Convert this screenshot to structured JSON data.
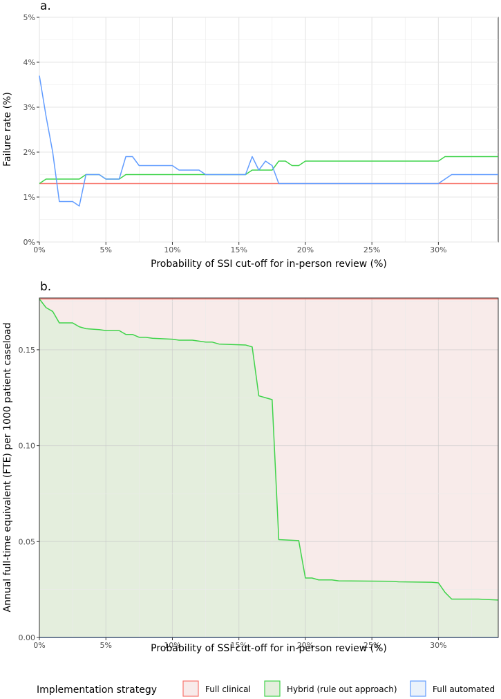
{
  "legend": {
    "title": "Implementation strategy",
    "items": [
      {
        "label": "Full clinical",
        "color": "#F8766D",
        "fill": "#F8EBEA"
      },
      {
        "label": "Hybrid (rule out approach)",
        "color": "#3FD34A",
        "fill": "#E4EEDD"
      },
      {
        "label": "Full automated",
        "color": "#619CFF",
        "fill": "#EAF2FB"
      }
    ]
  },
  "chart_data": [
    {
      "type": "line",
      "panel_label": "a.",
      "xlabel": "Probability of SSI cut-off for in-person review (%)",
      "ylabel": "Failure rate (%)",
      "xlim": [
        0,
        34.5
      ],
      "ylim": [
        0,
        5
      ],
      "x_ticks": [
        0,
        5,
        10,
        15,
        20,
        25,
        30
      ],
      "x_tick_labels": [
        "0%",
        "5%",
        "10%",
        "15%",
        "20%",
        "25%",
        "30%"
      ],
      "y_ticks": [
        0,
        1,
        2,
        3,
        4,
        5
      ],
      "y_tick_labels": [
        "0%",
        "1%",
        "2%",
        "3%",
        "4%",
        "5%"
      ],
      "grid": true,
      "series": [
        {
          "name": "Full clinical",
          "color": "#F8766D",
          "x": [
            0,
            34.5
          ],
          "y": [
            1.3,
            1.3
          ]
        },
        {
          "name": "Hybrid (rule out approach)",
          "color": "#3FD34A",
          "x": [
            0,
            0.5,
            3,
            3.5,
            4.5,
            5,
            6,
            6.5,
            15.5,
            16,
            17.5,
            18,
            18.5,
            19,
            19.5,
            20,
            30,
            30.5,
            34.5
          ],
          "y": [
            1.3,
            1.4,
            1.4,
            1.5,
            1.5,
            1.4,
            1.4,
            1.5,
            1.5,
            1.6,
            1.6,
            1.8,
            1.8,
            1.7,
            1.7,
            1.8,
            1.8,
            1.9,
            1.9
          ]
        },
        {
          "name": "Full automated",
          "color": "#619CFF",
          "x": [
            0,
            0.5,
            1,
            1.5,
            2.5,
            3,
            3.5,
            4,
            4.5,
            5,
            6,
            6.5,
            7,
            7.5,
            10,
            10.5,
            12,
            12.5,
            15.5,
            16,
            16.5,
            17,
            17.5,
            18,
            30,
            31,
            34.5
          ],
          "y": [
            3.7,
            2.8,
            2.0,
            0.9,
            0.9,
            0.8,
            1.5,
            1.5,
            1.5,
            1.4,
            1.4,
            1.9,
            1.9,
            1.7,
            1.7,
            1.6,
            1.6,
            1.5,
            1.5,
            1.9,
            1.6,
            1.8,
            1.7,
            1.3,
            1.3,
            1.5,
            1.5
          ]
        }
      ]
    },
    {
      "type": "area",
      "panel_label": "b.",
      "xlabel": "Probability of SSI cut-off for in-person review (%)",
      "ylabel": "Annual full-time equivalent (FTE) per 1000 patient caseload",
      "xlim": [
        0,
        34.5
      ],
      "ylim": [
        0,
        0.177
      ],
      "x_ticks": [
        0,
        5,
        10,
        15,
        20,
        25,
        30
      ],
      "x_tick_labels": [
        "0%",
        "5%",
        "10%",
        "15%",
        "20%",
        "25%",
        "30%"
      ],
      "y_ticks": [
        0,
        0.05,
        0.1,
        0.15
      ],
      "y_tick_labels": [
        "0.00",
        "0.05",
        "0.10",
        "0.15"
      ],
      "grid": true,
      "series": [
        {
          "name": "Full clinical",
          "color": "#F8766D",
          "fill": "#F8EBEA",
          "x": [
            0,
            34.5
          ],
          "y": [
            0.1765,
            0.1765
          ]
        },
        {
          "name": "Hybrid (rule out approach)",
          "color": "#3FD34A",
          "fill": "#E4EEDD",
          "x": [
            0,
            0.5,
            1,
            1.5,
            2.5,
            3,
            3.5,
            4.5,
            5,
            6,
            6.5,
            7,
            7.5,
            8,
            8.5,
            10,
            10.5,
            11.5,
            12,
            12.5,
            13,
            13.5,
            15.5,
            16,
            16.5,
            17.5,
            18,
            19.5,
            20,
            20.5,
            21,
            22,
            22.5,
            26.5,
            27,
            29.5,
            30,
            30.5,
            31,
            33,
            34.5
          ],
          "y": [
            0.1765,
            0.172,
            0.17,
            0.164,
            0.164,
            0.162,
            0.161,
            0.1605,
            0.16,
            0.16,
            0.158,
            0.158,
            0.1565,
            0.1565,
            0.156,
            0.1555,
            0.155,
            0.155,
            0.1545,
            0.154,
            0.154,
            0.153,
            0.1525,
            0.1515,
            0.126,
            0.124,
            0.051,
            0.0505,
            0.031,
            0.031,
            0.03,
            0.03,
            0.0295,
            0.0293,
            0.029,
            0.0288,
            0.0285,
            0.0235,
            0.02,
            0.02,
            0.0195
          ]
        },
        {
          "name": "Full automated",
          "color": "#619CFF",
          "fill": "#EAF2FB",
          "x": [
            0,
            34.5
          ],
          "y": [
            0,
            0
          ]
        }
      ]
    }
  ]
}
